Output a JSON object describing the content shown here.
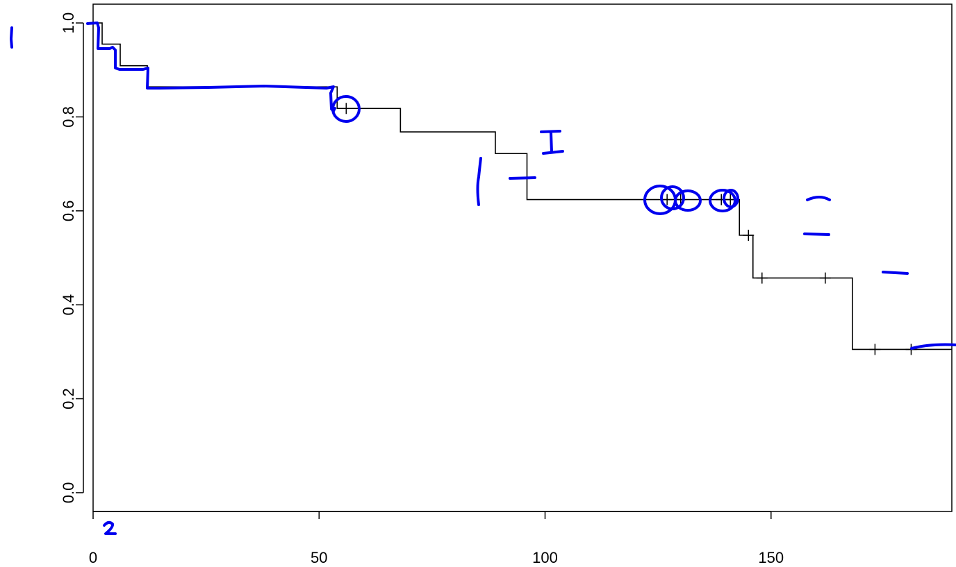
{
  "chart_data": {
    "type": "line",
    "title": "",
    "xlabel": "",
    "ylabel": "",
    "xlim": [
      0,
      190
    ],
    "ylim": [
      -0.04,
      1.04
    ],
    "x_ticks": [
      0,
      50,
      100,
      150
    ],
    "x_tick_labels": [
      "0",
      "50",
      "100",
      "150"
    ],
    "y_ticks": [
      0.0,
      0.2,
      0.4,
      0.6,
      0.8,
      1.0
    ],
    "y_tick_labels": [
      "0.0",
      "0.2",
      "0.4",
      "0.6",
      "0.8",
      "1.0"
    ],
    "grid": false,
    "legend": "none",
    "series": [
      {
        "style": "step",
        "color": "#000000",
        "points": [
          {
            "x": 0,
            "y": 1.0
          },
          {
            "x": 2,
            "y": 0.955
          },
          {
            "x": 6,
            "y": 0.909
          },
          {
            "x": 12,
            "y": 0.864
          },
          {
            "x": 54,
            "y": 0.818
          },
          {
            "x": 68,
            "y": 0.768
          },
          {
            "x": 89,
            "y": 0.722
          },
          {
            "x": 96,
            "y": 0.624
          },
          {
            "x": 143,
            "y": 0.548
          },
          {
            "x": 146,
            "y": 0.457
          },
          {
            "x": 168,
            "y": 0.305
          },
          {
            "x": 190,
            "y": 0.305
          }
        ],
        "censor_marks": [
          {
            "x": 56,
            "y": 0.818
          },
          {
            "x": 127,
            "y": 0.624
          },
          {
            "x": 130,
            "y": 0.624
          },
          {
            "x": 139,
            "y": 0.624
          },
          {
            "x": 141,
            "y": 0.624
          },
          {
            "x": 145,
            "y": 0.548
          },
          {
            "x": 148,
            "y": 0.457
          },
          {
            "x": 162,
            "y": 0.457
          },
          {
            "x": 173,
            "y": 0.305
          },
          {
            "x": 181,
            "y": 0.305
          }
        ]
      }
    ],
    "annotations": {
      "ink_color": "#0000ee",
      "handwritten_labels": [
        "1",
        "2"
      ]
    }
  }
}
